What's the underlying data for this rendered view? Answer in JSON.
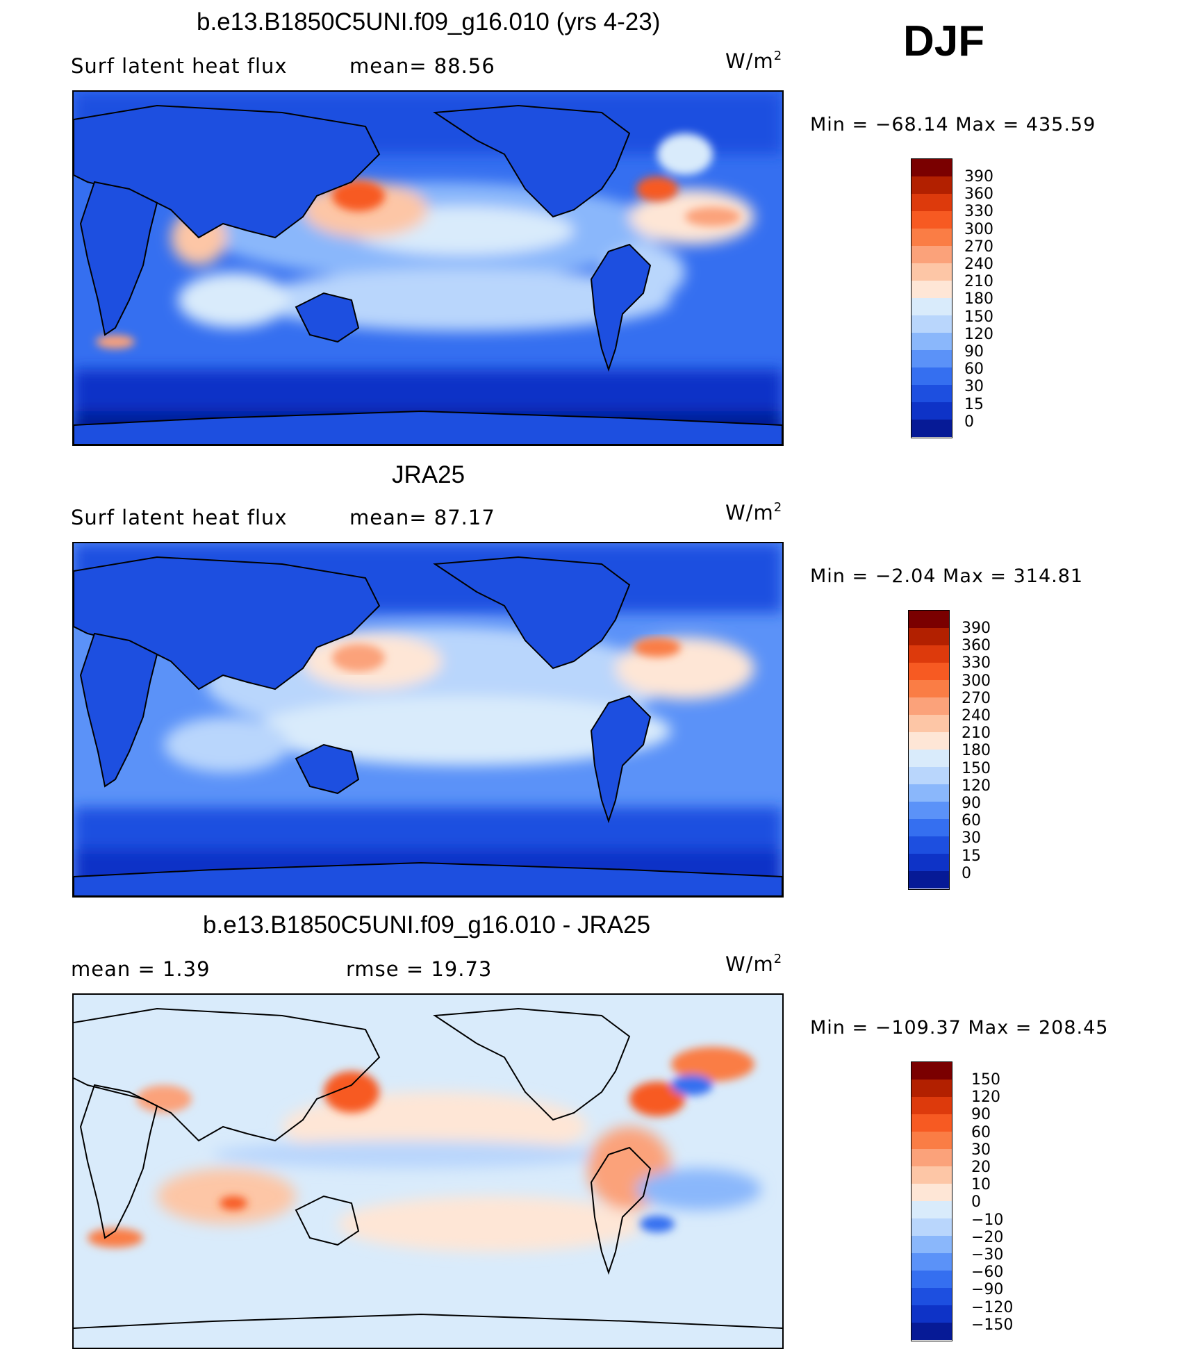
{
  "season": "DJF",
  "units_prefix": "W/m",
  "units_exp": "2",
  "panels": [
    {
      "title": "b.e13.B1850C5UNI.f09_g16.010 (yrs 4-23)",
      "left_label": "Surf latent heat flux",
      "mid_label": "mean=  88.56",
      "minmax": "Min  =  −68.14  Max  =  435.59",
      "legend_ticks": [
        "390",
        "360",
        "330",
        "300",
        "270",
        "240",
        "210",
        "180",
        "150",
        "120",
        "90",
        "60",
        "30",
        "15",
        "0"
      ]
    },
    {
      "title": "JRA25",
      "left_label": "Surf latent heat flux",
      "mid_label": "mean=  87.17",
      "minmax": "Min  =   −2.04  Max  =  314.81",
      "legend_ticks": [
        "390",
        "360",
        "330",
        "300",
        "270",
        "240",
        "210",
        "180",
        "150",
        "120",
        "90",
        "60",
        "30",
        "15",
        "0"
      ]
    },
    {
      "title": "b.e13.B1850C5UNI.f09_g16.010 - JRA25",
      "left_label": "mean  =     1.39",
      "mid_label": "rmse  =    19.73",
      "minmax": "Min  =  −109.37  Max  =  208.45",
      "legend_ticks": [
        "150",
        "120",
        "90",
        "60",
        "30",
        "20",
        "10",
        "0",
        "−10",
        "−20",
        "−30",
        "−60",
        "−90",
        "−120",
        "−150"
      ]
    }
  ],
  "colors": {
    "abs_scale": [
      "#7a0000",
      "#b22000",
      "#dd3a0c",
      "#f75a22",
      "#fa7d45",
      "#fba27a",
      "#fdc6a6",
      "#fee6d6",
      "#d9ebfb",
      "#b9d6fc",
      "#8ab7fb",
      "#5b92f8",
      "#356ff0",
      "#1d4fe0",
      "#0e33c7",
      "#061a96"
    ],
    "diff_scale": [
      "#7a0000",
      "#b22000",
      "#dd3a0c",
      "#f75a22",
      "#fa7d45",
      "#fba27a",
      "#fdc6a6",
      "#fee6d6",
      "#d9ebfb",
      "#b9d6fc",
      "#8ab7fb",
      "#5b92f8",
      "#356ff0",
      "#1d4fe0",
      "#0e33c7",
      "#061a96"
    ]
  }
}
